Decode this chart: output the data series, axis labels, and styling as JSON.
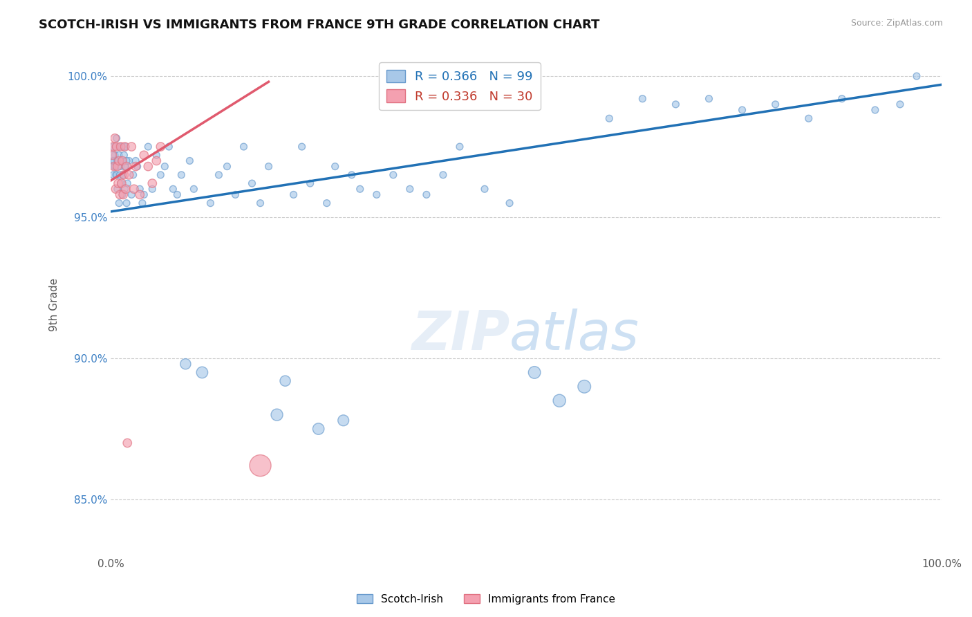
{
  "title": "SCOTCH-IRISH VS IMMIGRANTS FROM FRANCE 9TH GRADE CORRELATION CHART",
  "source": "Source: ZipAtlas.com",
  "ylabel": "9th Grade",
  "xlim": [
    0.0,
    1.0
  ],
  "ylim": [
    0.83,
    1.008
  ],
  "yticks": [
    0.85,
    0.9,
    0.95,
    1.0
  ],
  "ytick_labels": [
    "85.0%",
    "90.0%",
    "95.0%",
    "100.0%"
  ],
  "legend_blue_label": "R = 0.366   N = 99",
  "legend_pink_label": "R = 0.336   N = 30",
  "blue_face_color": "#a8c8e8",
  "blue_edge_color": "#6699cc",
  "pink_face_color": "#f4a0b0",
  "pink_edge_color": "#e07080",
  "blue_line_color": "#2171b5",
  "pink_line_color": "#e05a6e",
  "blue_scatter_x": [
    0.002,
    0.003,
    0.004,
    0.005,
    0.006,
    0.007,
    0.008,
    0.009,
    0.01,
    0.011,
    0.012,
    0.013,
    0.014,
    0.015,
    0.016,
    0.017,
    0.018,
    0.019,
    0.02,
    0.022,
    0.025,
    0.027,
    0.03,
    0.032,
    0.035,
    0.038,
    0.04,
    0.045,
    0.05,
    0.055,
    0.06,
    0.065,
    0.07,
    0.075,
    0.08,
    0.085,
    0.09,
    0.095,
    0.1,
    0.11,
    0.12,
    0.13,
    0.14,
    0.15,
    0.16,
    0.17,
    0.18,
    0.19,
    0.2,
    0.21,
    0.22,
    0.23,
    0.24,
    0.25,
    0.26,
    0.27,
    0.28,
    0.29,
    0.3,
    0.32,
    0.34,
    0.36,
    0.38,
    0.4,
    0.42,
    0.45,
    0.48,
    0.51,
    0.54,
    0.57,
    0.6,
    0.64,
    0.68,
    0.72,
    0.76,
    0.8,
    0.84,
    0.88,
    0.92,
    0.95,
    0.002,
    0.003,
    0.004,
    0.005,
    0.006,
    0.007,
    0.008,
    0.009,
    0.01,
    0.011,
    0.012,
    0.013,
    0.014,
    0.015,
    0.016,
    0.017,
    0.018,
    0.019,
    0.97
  ],
  "blue_scatter_y": [
    0.97,
    0.975,
    0.968,
    0.972,
    0.965,
    0.978,
    0.96,
    0.97,
    0.955,
    0.975,
    0.962,
    0.97,
    0.958,
    0.965,
    0.975,
    0.96,
    0.968,
    0.955,
    0.962,
    0.97,
    0.958,
    0.965,
    0.97,
    0.968,
    0.96,
    0.955,
    0.958,
    0.975,
    0.96,
    0.972,
    0.965,
    0.968,
    0.975,
    0.96,
    0.958,
    0.965,
    0.898,
    0.97,
    0.96,
    0.895,
    0.955,
    0.965,
    0.968,
    0.958,
    0.975,
    0.962,
    0.955,
    0.968,
    0.88,
    0.892,
    0.958,
    0.975,
    0.962,
    0.875,
    0.955,
    0.968,
    0.878,
    0.965,
    0.96,
    0.958,
    0.965,
    0.96,
    0.958,
    0.965,
    0.975,
    0.96,
    0.955,
    0.895,
    0.885,
    0.89,
    0.985,
    0.992,
    0.99,
    0.992,
    0.988,
    0.99,
    0.985,
    0.992,
    0.988,
    0.99,
    0.972,
    0.965,
    0.97,
    0.968,
    0.975,
    0.965,
    0.97,
    0.968,
    0.972,
    0.965,
    0.968,
    0.975,
    0.97,
    0.965,
    0.972,
    0.968,
    0.975,
    0.97,
    1.0
  ],
  "blue_scatter_s": [
    50,
    50,
    50,
    50,
    50,
    50,
    50,
    50,
    50,
    50,
    50,
    50,
    50,
    50,
    50,
    50,
    50,
    50,
    50,
    50,
    50,
    50,
    50,
    50,
    50,
    50,
    50,
    50,
    50,
    50,
    50,
    50,
    50,
    50,
    50,
    50,
    120,
    50,
    50,
    140,
    50,
    50,
    50,
    50,
    50,
    50,
    50,
    50,
    150,
    120,
    50,
    50,
    50,
    140,
    50,
    50,
    130,
    50,
    50,
    50,
    50,
    50,
    50,
    50,
    50,
    50,
    50,
    160,
    170,
    180,
    50,
    50,
    50,
    50,
    50,
    50,
    50,
    50,
    50,
    50,
    50,
    50,
    50,
    50,
    50,
    50,
    50,
    50,
    50,
    50,
    50,
    50,
    50,
    50,
    50,
    50,
    50,
    50,
    50
  ],
  "pink_scatter_x": [
    0.002,
    0.003,
    0.004,
    0.005,
    0.006,
    0.007,
    0.008,
    0.009,
    0.01,
    0.011,
    0.012,
    0.013,
    0.014,
    0.015,
    0.016,
    0.017,
    0.018,
    0.019,
    0.02,
    0.022,
    0.025,
    0.028,
    0.03,
    0.035,
    0.04,
    0.045,
    0.05,
    0.055,
    0.06,
    0.18
  ],
  "pink_scatter_y": [
    0.972,
    0.975,
    0.968,
    0.978,
    0.96,
    0.975,
    0.968,
    0.962,
    0.97,
    0.958,
    0.975,
    0.962,
    0.97,
    0.958,
    0.965,
    0.975,
    0.96,
    0.968,
    0.87,
    0.965,
    0.975,
    0.96,
    0.968,
    0.958,
    0.972,
    0.968,
    0.962,
    0.97,
    0.975,
    0.862
  ],
  "pink_scatter_s": [
    80,
    80,
    80,
    80,
    80,
    80,
    80,
    80,
    80,
    80,
    80,
    80,
    80,
    80,
    80,
    80,
    80,
    80,
    80,
    80,
    80,
    80,
    80,
    80,
    80,
    80,
    80,
    80,
    80,
    500
  ],
  "blue_trend": [
    0.0,
    1.0,
    0.952,
    0.997
  ],
  "pink_trend": [
    0.0,
    0.19,
    0.963,
    0.998
  ]
}
